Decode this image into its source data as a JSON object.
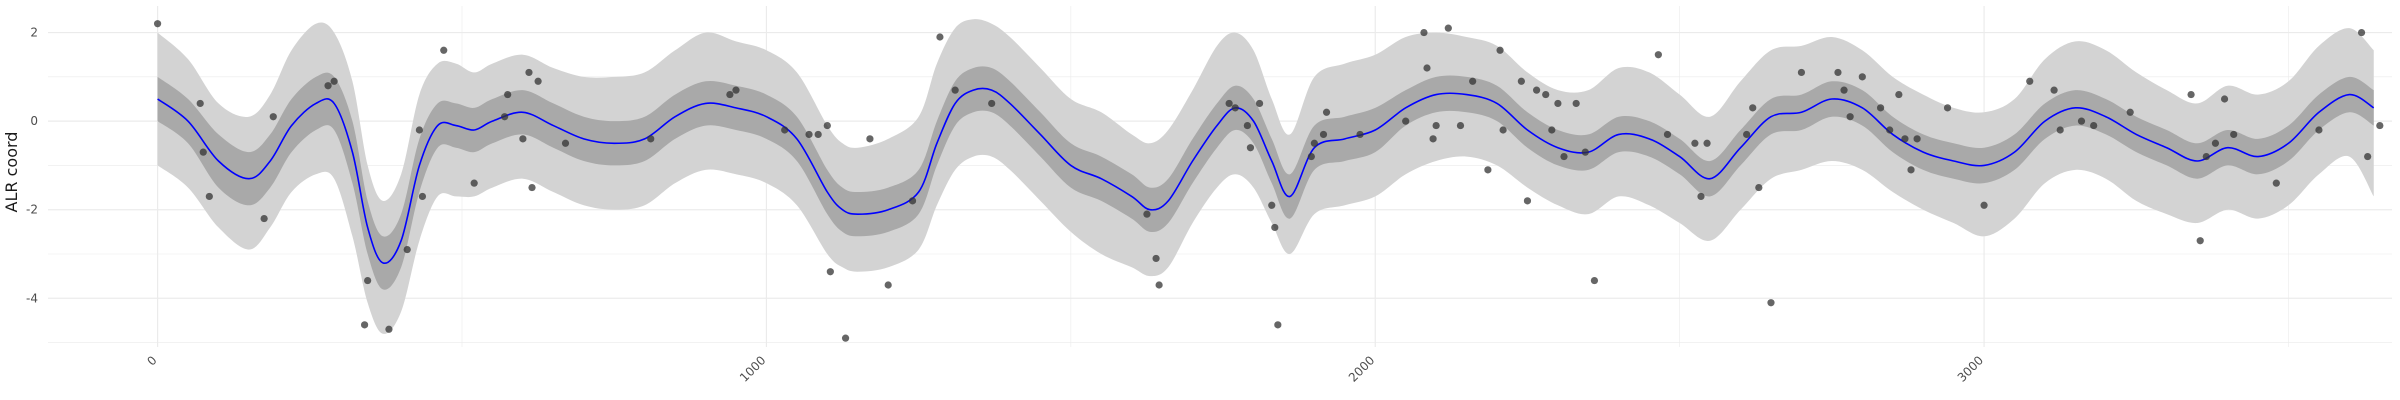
{
  "chart_data": {
    "type": "line",
    "xlabel": "",
    "ylabel": "ALR coord",
    "xlim": [
      -180,
      3670
    ],
    "ylim": [
      -5.1,
      2.6
    ],
    "x_ticks": [
      0,
      1000,
      2000,
      3000
    ],
    "y_ticks": [
      -4,
      -2,
      0,
      2
    ],
    "grid": true,
    "colors": {
      "line": "#0000ff",
      "inner_band": "#a9a9a9",
      "outer_band": "#d3d3d3",
      "points": "#333333",
      "grid": "#ebebeb"
    },
    "series": [
      {
        "kind": "mean",
        "x": [
          0,
          50,
          100,
          150,
          185,
          220,
          260,
          290,
          320,
          345,
          370,
          400,
          430,
          460,
          490,
          520,
          550,
          600,
          650,
          700,
          750,
          800,
          850,
          900,
          950,
          1000,
          1050,
          1100,
          1125,
          1150,
          1200,
          1250,
          1280,
          1310,
          1340,
          1370,
          1400,
          1450,
          1500,
          1550,
          1600,
          1630,
          1660,
          1700,
          1740,
          1770,
          1800,
          1830,
          1860,
          1900,
          1950,
          2000,
          2050,
          2100,
          2150,
          2200,
          2250,
          2300,
          2350,
          2400,
          2450,
          2500,
          2550,
          2600,
          2650,
          2700,
          2750,
          2800,
          2850,
          2900,
          2950,
          3000,
          3050,
          3100,
          3150,
          3200,
          3250,
          3300,
          3350,
          3400,
          3450,
          3500,
          3550,
          3600,
          3640
        ],
        "y": [
          0.5,
          0.0,
          -0.9,
          -1.3,
          -0.9,
          -0.1,
          0.4,
          0.4,
          -0.7,
          -2.4,
          -3.2,
          -2.7,
          -1.0,
          -0.1,
          -0.1,
          -0.2,
          0.0,
          0.2,
          -0.1,
          -0.4,
          -0.5,
          -0.4,
          0.1,
          0.4,
          0.3,
          0.1,
          -0.4,
          -1.6,
          -2.0,
          -2.1,
          -2.0,
          -1.6,
          -0.5,
          0.4,
          0.7,
          0.7,
          0.4,
          -0.3,
          -1.0,
          -1.3,
          -1.7,
          -2.0,
          -1.8,
          -0.9,
          -0.1,
          0.3,
          0.0,
          -0.9,
          -1.7,
          -0.6,
          -0.4,
          -0.2,
          0.3,
          0.6,
          0.6,
          0.4,
          -0.2,
          -0.6,
          -0.7,
          -0.3,
          -0.4,
          -0.8,
          -1.3,
          -0.6,
          0.1,
          0.2,
          0.5,
          0.3,
          -0.3,
          -0.7,
          -0.9,
          -1.0,
          -0.7,
          0.0,
          0.3,
          0.1,
          -0.3,
          -0.6,
          -0.9,
          -0.6,
          -0.8,
          -0.5,
          0.2,
          0.6,
          0.3
        ]
      },
      {
        "kind": "inner-band",
        "x": [
          0,
          50,
          100,
          150,
          185,
          220,
          260,
          290,
          320,
          345,
          370,
          400,
          430,
          460,
          490,
          520,
          550,
          600,
          650,
          700,
          750,
          800,
          850,
          900,
          950,
          1000,
          1050,
          1100,
          1125,
          1150,
          1200,
          1250,
          1280,
          1310,
          1340,
          1370,
          1400,
          1450,
          1500,
          1550,
          1600,
          1630,
          1660,
          1700,
          1740,
          1770,
          1800,
          1830,
          1860,
          1900,
          1950,
          2000,
          2050,
          2100,
          2150,
          2200,
          2250,
          2300,
          2350,
          2400,
          2450,
          2500,
          2550,
          2600,
          2650,
          2700,
          2750,
          2800,
          2850,
          2900,
          2950,
          3000,
          3050,
          3100,
          3150,
          3200,
          3250,
          3300,
          3350,
          3400,
          3450,
          3500,
          3550,
          3600,
          3640
        ],
        "upper": [
          1.0,
          0.5,
          -0.3,
          -0.7,
          -0.3,
          0.5,
          1.0,
          1.0,
          0.0,
          -1.8,
          -2.6,
          -2.1,
          -0.4,
          0.4,
          0.4,
          0.3,
          0.5,
          0.7,
          0.4,
          0.1,
          0.0,
          0.1,
          0.6,
          0.9,
          0.8,
          0.6,
          0.1,
          -1.1,
          -1.5,
          -1.6,
          -1.5,
          -1.1,
          0.0,
          0.9,
          1.2,
          1.2,
          0.9,
          0.2,
          -0.5,
          -0.8,
          -1.2,
          -1.5,
          -1.3,
          -0.4,
          0.4,
          0.8,
          0.5,
          -0.4,
          -1.2,
          -0.1,
          0.1,
          0.3,
          0.7,
          1.0,
          1.0,
          0.8,
          0.2,
          -0.2,
          -0.3,
          0.1,
          0.0,
          -0.4,
          -0.9,
          -0.2,
          0.5,
          0.6,
          0.9,
          0.7,
          0.1,
          -0.3,
          -0.5,
          -0.6,
          -0.3,
          0.4,
          0.7,
          0.5,
          0.1,
          -0.2,
          -0.5,
          -0.2,
          -0.4,
          -0.1,
          0.6,
          1.0,
          0.7
        ],
        "lower": [
          0.0,
          -0.5,
          -1.5,
          -1.9,
          -1.5,
          -0.7,
          -0.2,
          -0.2,
          -1.4,
          -3.0,
          -3.8,
          -3.3,
          -1.6,
          -0.6,
          -0.6,
          -0.7,
          -0.5,
          -0.3,
          -0.6,
          -0.9,
          -1.0,
          -0.9,
          -0.4,
          -0.1,
          -0.2,
          -0.4,
          -0.9,
          -2.1,
          -2.5,
          -2.6,
          -2.5,
          -2.1,
          -1.0,
          -0.1,
          0.2,
          0.2,
          -0.1,
          -0.8,
          -1.5,
          -1.8,
          -2.2,
          -2.5,
          -2.3,
          -1.4,
          -0.6,
          -0.2,
          -0.5,
          -1.4,
          -2.2,
          -1.1,
          -0.9,
          -0.7,
          -0.1,
          0.2,
          0.2,
          0.0,
          -0.6,
          -1.0,
          -1.1,
          -0.7,
          -0.8,
          -1.2,
          -1.7,
          -1.0,
          -0.3,
          -0.2,
          0.1,
          -0.1,
          -0.7,
          -1.1,
          -1.3,
          -1.4,
          -1.1,
          -0.4,
          -0.1,
          -0.3,
          -0.7,
          -1.0,
          -1.3,
          -1.0,
          -1.2,
          -0.9,
          -0.2,
          0.2,
          -0.1
        ]
      },
      {
        "kind": "outer-band",
        "x": [
          0,
          50,
          100,
          150,
          185,
          220,
          260,
          290,
          320,
          345,
          370,
          400,
          430,
          460,
          490,
          520,
          550,
          600,
          650,
          700,
          750,
          800,
          850,
          900,
          950,
          1000,
          1050,
          1100,
          1125,
          1150,
          1200,
          1250,
          1280,
          1310,
          1340,
          1370,
          1400,
          1450,
          1500,
          1550,
          1600,
          1630,
          1660,
          1700,
          1740,
          1770,
          1800,
          1830,
          1860,
          1900,
          1950,
          2000,
          2050,
          2100,
          2150,
          2200,
          2250,
          2300,
          2350,
          2400,
          2450,
          2500,
          2550,
          2600,
          2650,
          2700,
          2750,
          2800,
          2850,
          2900,
          2950,
          3000,
          3050,
          3100,
          3150,
          3200,
          3250,
          3300,
          3350,
          3400,
          3450,
          3500,
          3550,
          3600,
          3640
        ],
        "upper": [
          2.0,
          1.4,
          0.4,
          0.1,
          0.6,
          1.6,
          2.2,
          2.0,
          0.9,
          -1.0,
          -1.8,
          -1.2,
          0.6,
          1.3,
          1.3,
          1.1,
          1.3,
          1.5,
          1.2,
          1.0,
          1.0,
          1.1,
          1.6,
          2.0,
          1.8,
          1.6,
          1.1,
          -0.1,
          -0.5,
          -0.6,
          -0.4,
          0.1,
          1.3,
          2.1,
          2.3,
          2.2,
          1.9,
          1.2,
          0.5,
          0.2,
          -0.3,
          -0.5,
          -0.2,
          0.7,
          1.7,
          2.0,
          1.6,
          0.5,
          -0.3,
          1.0,
          1.3,
          1.5,
          1.9,
          2.0,
          1.9,
          1.7,
          1.1,
          0.7,
          0.7,
          1.2,
          1.1,
          0.6,
          0.1,
          0.9,
          1.6,
          1.7,
          1.9,
          1.6,
          1.0,
          0.6,
          0.3,
          0.2,
          0.5,
          1.4,
          1.8,
          1.6,
          1.1,
          0.7,
          0.4,
          0.8,
          0.6,
          0.9,
          1.7,
          2.1,
          1.6
        ],
        "lower": [
          -1.0,
          -1.5,
          -2.4,
          -2.9,
          -2.4,
          -1.6,
          -1.2,
          -1.3,
          -2.6,
          -4.1,
          -4.8,
          -4.3,
          -2.7,
          -1.7,
          -1.7,
          -1.7,
          -1.5,
          -1.3,
          -1.6,
          -1.9,
          -2.0,
          -1.9,
          -1.4,
          -1.1,
          -1.2,
          -1.4,
          -1.9,
          -3.0,
          -3.3,
          -3.4,
          -3.3,
          -2.9,
          -1.9,
          -1.1,
          -0.8,
          -0.8,
          -1.1,
          -1.8,
          -2.5,
          -3.0,
          -3.3,
          -3.5,
          -3.3,
          -2.3,
          -1.5,
          -1.2,
          -1.5,
          -2.3,
          -3.0,
          -2.1,
          -1.9,
          -1.7,
          -1.2,
          -0.9,
          -0.8,
          -1.0,
          -1.5,
          -1.9,
          -2.1,
          -1.7,
          -1.9,
          -2.3,
          -2.7,
          -2.0,
          -1.3,
          -1.1,
          -0.9,
          -1.1,
          -1.6,
          -2.0,
          -2.3,
          -2.6,
          -2.2,
          -1.4,
          -1.1,
          -1.3,
          -1.8,
          -2.1,
          -2.3,
          -2.0,
          -2.2,
          -1.9,
          -1.2,
          -0.8,
          -1.7
        ]
      },
      {
        "kind": "observations",
        "points": [
          [
            0,
            2.2
          ],
          [
            70,
            0.4
          ],
          [
            75,
            -0.7
          ],
          [
            85,
            -1.7
          ],
          [
            175,
            -2.2
          ],
          [
            190,
            0.1
          ],
          [
            280,
            0.8
          ],
          [
            290,
            0.9
          ],
          [
            340,
            -4.6
          ],
          [
            345,
            -3.6
          ],
          [
            380,
            -4.7
          ],
          [
            410,
            -2.9
          ],
          [
            430,
            -0.2
          ],
          [
            435,
            -1.7
          ],
          [
            470,
            1.6
          ],
          [
            520,
            -1.4
          ],
          [
            570,
            0.1
          ],
          [
            575,
            0.6
          ],
          [
            600,
            -0.4
          ],
          [
            610,
            1.1
          ],
          [
            615,
            -1.5
          ],
          [
            625,
            0.9
          ],
          [
            670,
            -0.5
          ],
          [
            810,
            -0.4
          ],
          [
            940,
            0.6
          ],
          [
            950,
            0.7
          ],
          [
            1030,
            -0.2
          ],
          [
            1070,
            -0.3
          ],
          [
            1085,
            -0.3
          ],
          [
            1100,
            -0.1
          ],
          [
            1105,
            -3.4
          ],
          [
            1130,
            -4.9
          ],
          [
            1170,
            -0.4
          ],
          [
            1200,
            -3.7
          ],
          [
            1240,
            -1.8
          ],
          [
            1285,
            1.9
          ],
          [
            1310,
            0.7
          ],
          [
            1370,
            0.4
          ],
          [
            1625,
            -2.1
          ],
          [
            1640,
            -3.1
          ],
          [
            1645,
            -3.7
          ],
          [
            1760,
            0.4
          ],
          [
            1770,
            0.3
          ],
          [
            1790,
            -0.1
          ],
          [
            1795,
            -0.6
          ],
          [
            1810,
            0.4
          ],
          [
            1830,
            -1.9
          ],
          [
            1835,
            -2.4
          ],
          [
            1840,
            -4.6
          ],
          [
            1895,
            -0.8
          ],
          [
            1900,
            -0.5
          ],
          [
            1915,
            -0.3
          ],
          [
            1920,
            0.2
          ],
          [
            1975,
            -0.3
          ],
          [
            2050,
            0.0
          ],
          [
            2080,
            2.0
          ],
          [
            2085,
            1.2
          ],
          [
            2095,
            -0.4
          ],
          [
            2100,
            -0.1
          ],
          [
            2120,
            2.1
          ],
          [
            2140,
            -0.1
          ],
          [
            2160,
            0.9
          ],
          [
            2185,
            -1.1
          ],
          [
            2205,
            1.6
          ],
          [
            2210,
            -0.2
          ],
          [
            2240,
            0.9
          ],
          [
            2250,
            -1.8
          ],
          [
            2265,
            0.7
          ],
          [
            2280,
            0.6
          ],
          [
            2290,
            -0.2
          ],
          [
            2300,
            0.4
          ],
          [
            2310,
            -0.8
          ],
          [
            2330,
            0.4
          ],
          [
            2345,
            -0.7
          ],
          [
            2360,
            -3.6
          ],
          [
            2465,
            1.5
          ],
          [
            2480,
            -0.3
          ],
          [
            2525,
            -0.5
          ],
          [
            2535,
            -1.7
          ],
          [
            2545,
            -0.5
          ],
          [
            2610,
            -0.3
          ],
          [
            2620,
            0.3
          ],
          [
            2630,
            -1.5
          ],
          [
            2650,
            -4.1
          ],
          [
            2700,
            1.1
          ],
          [
            2760,
            1.1
          ],
          [
            2770,
            0.7
          ],
          [
            2780,
            0.1
          ],
          [
            2800,
            1.0
          ],
          [
            2830,
            0.3
          ],
          [
            2845,
            -0.2
          ],
          [
            2860,
            0.6
          ],
          [
            2870,
            -0.4
          ],
          [
            2880,
            -1.1
          ],
          [
            2890,
            -0.4
          ],
          [
            2940,
            0.3
          ],
          [
            3000,
            -1.9
          ],
          [
            3075,
            0.9
          ],
          [
            3115,
            0.7
          ],
          [
            3125,
            -0.2
          ],
          [
            3160,
            0.0
          ],
          [
            3180,
            -0.1
          ],
          [
            3240,
            0.2
          ],
          [
            3340,
            0.6
          ],
          [
            3355,
            -2.7
          ],
          [
            3365,
            -0.8
          ],
          [
            3380,
            -0.5
          ],
          [
            3395,
            0.5
          ],
          [
            3410,
            -0.3
          ],
          [
            3480,
            -1.4
          ],
          [
            3550,
            -0.2
          ],
          [
            3620,
            2.0
          ],
          [
            3630,
            -0.8
          ],
          [
            3650,
            -0.1
          ]
        ]
      }
    ]
  }
}
